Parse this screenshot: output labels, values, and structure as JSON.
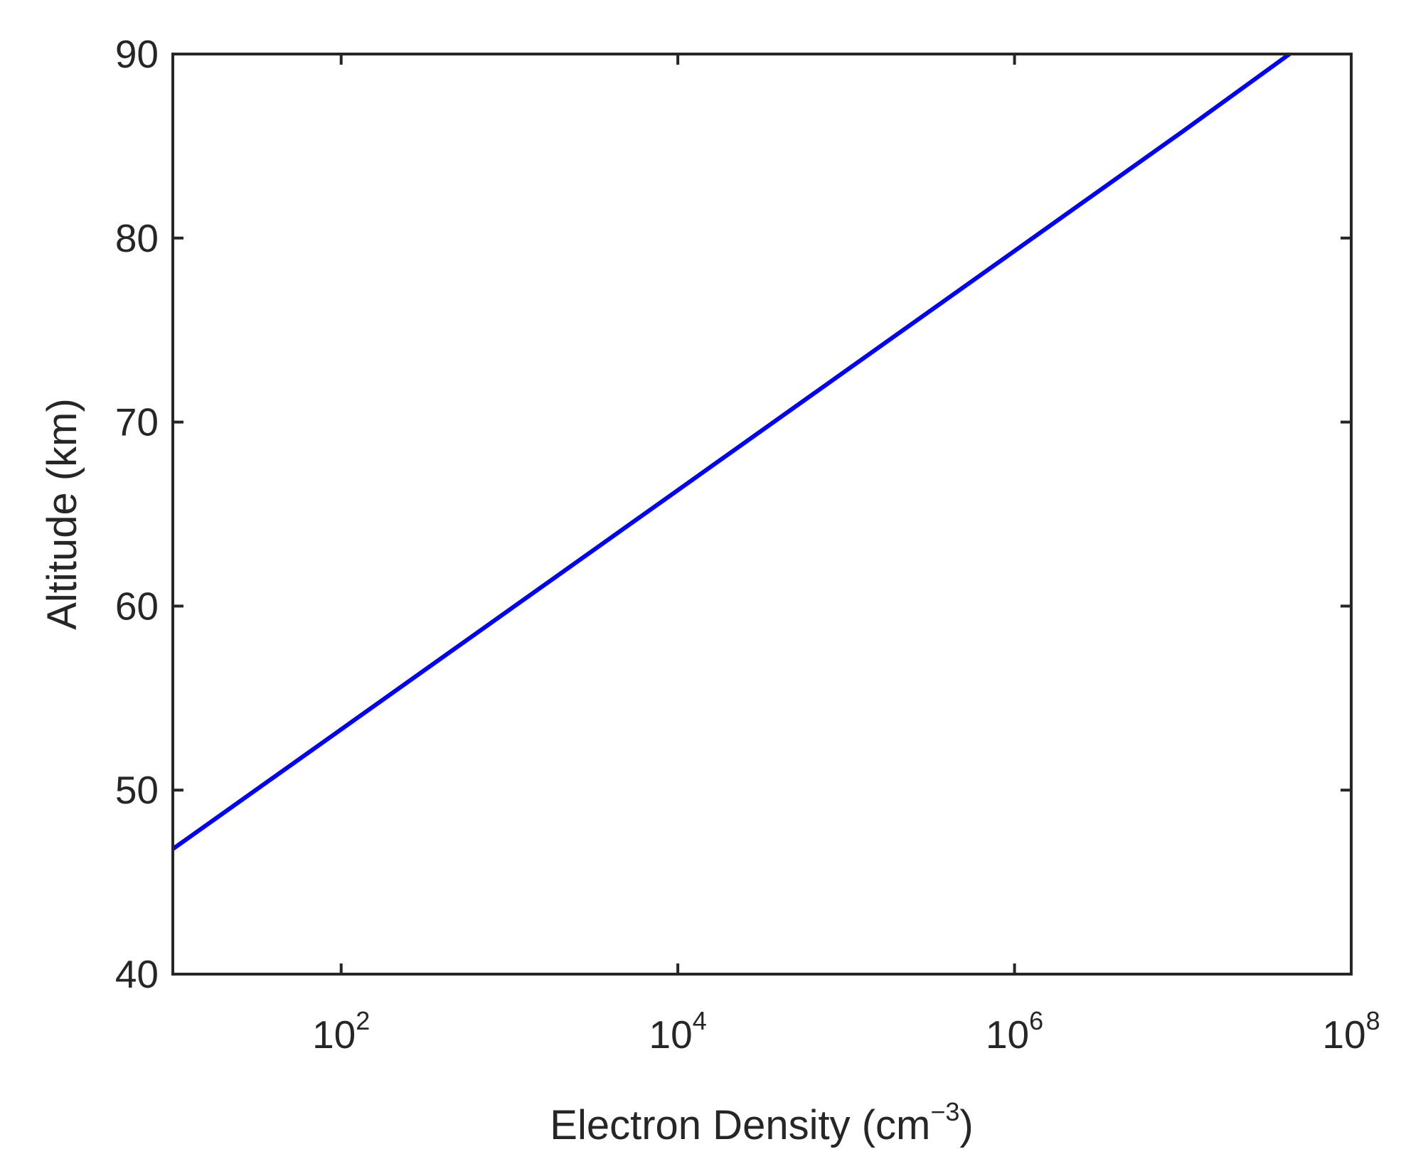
{
  "chart_data": {
    "type": "line",
    "xlabel": "Electron Density (cm",
    "xlabel_exp": "−3",
    "xlabel_close": ")",
    "ylabel": "Altitude (km)",
    "xscale": "log",
    "xlim": [
      10,
      100000000
    ],
    "ylim": [
      40,
      90
    ],
    "grid": false,
    "x_ticks": [
      {
        "value": 100,
        "base": "10",
        "exp": "2"
      },
      {
        "value": 10000,
        "base": "10",
        "exp": "4"
      },
      {
        "value": 1000000,
        "base": "10",
        "exp": "6"
      },
      {
        "value": 100000000,
        "base": "10",
        "exp": "8"
      }
    ],
    "y_ticks": [
      "40",
      "50",
      "60",
      "70",
      "80",
      "90"
    ],
    "series": [
      {
        "color": "#0000ff",
        "x": [
          10,
          100,
          1000,
          10000,
          100000,
          1000000,
          10000000,
          43000000
        ],
        "y": [
          46.8,
          53.3,
          59.8,
          66.3,
          72.8,
          79.3,
          85.8,
          90
        ]
      }
    ]
  }
}
